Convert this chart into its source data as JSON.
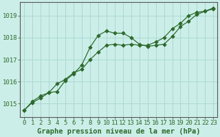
{
  "title": "Graphe pression niveau de la mer (hPa)",
  "background_color": "#cceee8",
  "plot_bg_color": "#cceee8",
  "line_color": "#2d6a2d",
  "grid_color": "#aad8d2",
  "xlim_min": -0.5,
  "xlim_max": 23.5,
  "ylim_min": 1014.4,
  "ylim_max": 1019.6,
  "yticks": [
    1015,
    1016,
    1017,
    1018,
    1019
  ],
  "xticks": [
    0,
    1,
    2,
    3,
    4,
    5,
    6,
    7,
    8,
    9,
    10,
    11,
    12,
    13,
    14,
    15,
    16,
    17,
    18,
    19,
    20,
    21,
    22,
    23
  ],
  "series1_x": [
    0,
    1,
    2,
    3,
    4,
    5,
    6,
    7,
    8,
    9,
    10,
    11,
    12,
    13,
    14,
    15,
    16,
    17,
    18,
    19,
    20,
    21,
    22,
    23
  ],
  "series1_y": [
    1014.7,
    1015.05,
    1015.25,
    1015.5,
    1015.55,
    1016.05,
    1016.35,
    1016.75,
    1017.55,
    1018.1,
    1018.3,
    1018.2,
    1018.2,
    1018.0,
    1017.7,
    1017.6,
    1017.65,
    1017.7,
    1018.05,
    1018.5,
    1018.75,
    1019.05,
    1019.2,
    1019.35
  ],
  "series2_x": [
    0,
    1,
    2,
    3,
    4,
    5,
    6,
    7,
    8,
    9,
    10,
    11,
    12,
    13,
    14,
    15,
    16,
    17,
    18,
    19,
    20,
    21,
    22,
    23
  ],
  "series2_y": [
    1014.7,
    1015.1,
    1015.35,
    1015.5,
    1015.9,
    1016.1,
    1016.4,
    1016.55,
    1017.0,
    1017.35,
    1017.65,
    1017.7,
    1017.65,
    1017.7,
    1017.65,
    1017.65,
    1017.8,
    1018.0,
    1018.4,
    1018.65,
    1019.0,
    1019.15,
    1019.2,
    1019.3
  ],
  "label_fontsize": 6.5,
  "title_fontsize": 7.5
}
